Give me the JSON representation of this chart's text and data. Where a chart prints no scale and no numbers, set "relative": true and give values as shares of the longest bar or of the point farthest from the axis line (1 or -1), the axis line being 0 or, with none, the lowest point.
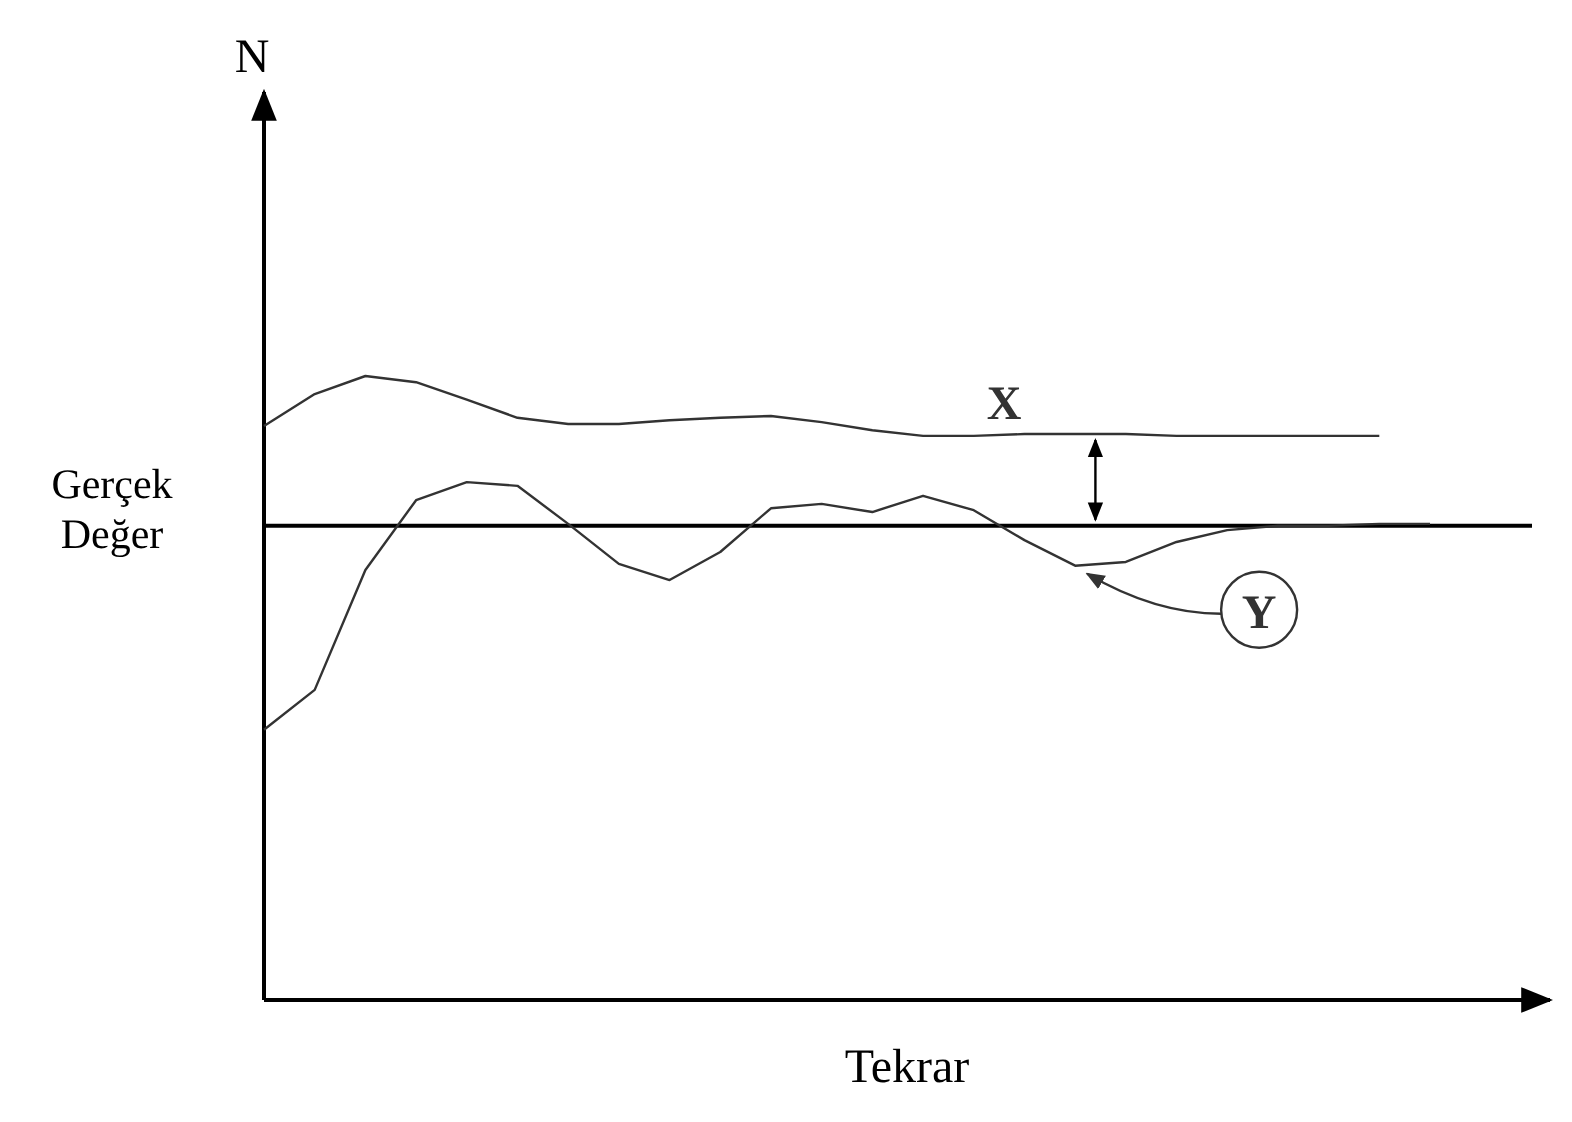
{
  "chart_data": {
    "type": "line",
    "xlabel": "Tekrar",
    "annotations": [
      "N"
    ],
    "relative": true,
    "categories": [
      null,
      null,
      null,
      null,
      null,
      null,
      null,
      null,
      null,
      null,
      null,
      null,
      null,
      null,
      null,
      null,
      null,
      null,
      null,
      null,
      null,
      null,
      null,
      null
    ],
    "series": [
      {
        "name": "X",
        "color": "#333333",
        "values": [
          0.92,
          0.971,
          1,
          0.99,
          0.962,
          0.933,
          0.923,
          0.923,
          0.929,
          0.933,
          0.936,
          0.926,
          0.913,
          0.904,
          0.904,
          0.907,
          0.907,
          0.907,
          0.904,
          0.904,
          0.904,
          0.904,
          0.904,
          null
        ]
      },
      {
        "name": "Y",
        "color": "#333333",
        "values": [
          0.433,
          0.497,
          0.689,
          0.801,
          0.83,
          0.824,
          0.763,
          0.699,
          0.673,
          0.718,
          0.788,
          0.795,
          0.782,
          0.808,
          0.785,
          0.737,
          0.696,
          0.702,
          0.734,
          0.753,
          0.76,
          0.76,
          0.763,
          0.763
        ]
      }
    ],
    "ref_lines": [
      {
        "axis": "y",
        "value": 0.76,
        "label": "Gerçek Değer",
        "color": "#000000"
      }
    ]
  }
}
